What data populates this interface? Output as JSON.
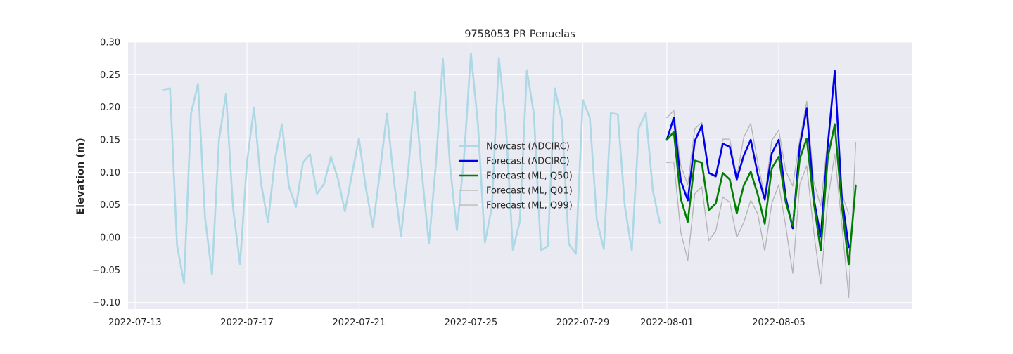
{
  "chart_data": {
    "type": "line",
    "title": "9758053 PR Penuelas",
    "xlabel": "",
    "ylabel": "Elevation (m)",
    "ylim": [
      -0.11,
      0.3
    ],
    "xlim_days": [
      -0.25,
      27.75
    ],
    "x_epoch": "2022-07-13",
    "x_ticks": [
      {
        "day": 0,
        "label": "2022-07-13"
      },
      {
        "day": 4,
        "label": "2022-07-17"
      },
      {
        "day": 8,
        "label": "2022-07-21"
      },
      {
        "day": 12,
        "label": "2022-07-25"
      },
      {
        "day": 16,
        "label": "2022-07-29"
      },
      {
        "day": 19,
        "label": "2022-08-01"
      },
      {
        "day": 23,
        "label": "2022-08-05"
      }
    ],
    "y_ticks": [
      {
        "value": 0.3,
        "label": "0.30"
      },
      {
        "value": 0.25,
        "label": "0.25"
      },
      {
        "value": 0.2,
        "label": "0.20"
      },
      {
        "value": 0.15,
        "label": "0.15"
      },
      {
        "value": 0.1,
        "label": "0.10"
      },
      {
        "value": 0.05,
        "label": "0.05"
      },
      {
        "value": 0.0,
        "label": "0.00"
      },
      {
        "value": -0.05,
        "label": "−0.05"
      },
      {
        "value": -0.1,
        "label": "−0.10"
      }
    ],
    "grid": true,
    "legend_position": "center",
    "series": [
      {
        "name": "Nowcast (ADCIRC)",
        "color": "#add8e6",
        "width": 2.6,
        "x_start_day": 1.0,
        "x_step_day": 0.25,
        "values": [
          0.227,
          0.229,
          -0.012,
          -0.07,
          0.19,
          0.236,
          0.031,
          -0.057,
          0.15,
          0.221,
          0.046,
          -0.041,
          0.116,
          0.199,
          0.084,
          0.023,
          0.12,
          0.174,
          0.078,
          0.047,
          0.115,
          0.128,
          0.067,
          0.082,
          0.124,
          0.09,
          0.04,
          0.097,
          0.152,
          0.075,
          0.016,
          0.101,
          0.19,
          0.088,
          0.002,
          0.098,
          0.223,
          0.098,
          -0.009,
          0.113,
          0.274,
          0.112,
          0.011,
          0.12,
          0.283,
          0.175,
          -0.008,
          0.047,
          0.276,
          0.173,
          -0.019,
          0.025,
          0.257,
          0.19,
          -0.02,
          -0.013,
          0.229,
          0.18,
          -0.01,
          -0.025,
          0.211,
          0.184,
          0.027,
          -0.018,
          0.191,
          0.189,
          0.048,
          -0.02,
          0.168,
          0.191,
          0.072,
          0.022
        ]
      },
      {
        "name": "Forecast (ADCIRC)",
        "color": "#0000ee",
        "width": 2.6,
        "x_start_day": 19.0,
        "x_step_day": 0.25,
        "values": [
          0.15,
          0.184,
          0.087,
          0.057,
          0.148,
          0.172,
          0.099,
          0.094,
          0.144,
          0.139,
          0.089,
          0.126,
          0.15,
          0.097,
          0.058,
          0.129,
          0.15,
          0.061,
          0.014,
          0.14,
          0.198,
          0.06,
          0.001,
          0.14,
          0.256,
          0.063,
          -0.015
        ]
      },
      {
        "name": "Forecast (ML, Q50)",
        "color": "#008000",
        "width": 2.6,
        "x_start_day": 19.0,
        "x_step_day": 0.25,
        "values": [
          0.15,
          0.162,
          0.059,
          0.024,
          0.118,
          0.115,
          0.042,
          0.052,
          0.099,
          0.089,
          0.037,
          0.08,
          0.101,
          0.066,
          0.021,
          0.106,
          0.124,
          0.054,
          0.018,
          0.121,
          0.152,
          0.054,
          -0.02,
          0.122,
          0.174,
          0.05,
          -0.042,
          0.08
        ]
      },
      {
        "name": "Forecast (ML, Q01)",
        "color": "#b3b3b3",
        "width": 1.3,
        "x_start_day": 19.0,
        "x_step_day": 0.25,
        "values": [
          0.115,
          0.116,
          0.008,
          -0.035,
          0.067,
          0.078,
          -0.005,
          0.01,
          0.062,
          0.054,
          0.0,
          0.023,
          0.057,
          0.036,
          -0.021,
          0.052,
          0.081,
          0.017,
          -0.055,
          0.082,
          0.11,
          0.009,
          -0.072,
          0.057,
          0.128,
          0.022,
          -0.092,
          0.146
        ]
      },
      {
        "name": "Forecast (ML, Q99)",
        "color": "#b3b3b3",
        "width": 1.3,
        "x_start_day": 19.0,
        "x_step_day": 0.25,
        "values": [
          0.184,
          0.195,
          0.11,
          0.081,
          0.167,
          0.177,
          0.099,
          0.092,
          0.151,
          0.151,
          0.092,
          0.154,
          0.175,
          0.115,
          0.062,
          0.149,
          0.165,
          0.102,
          0.079,
          0.15,
          0.209,
          0.086,
          0.048,
          0.151,
          0.25,
          0.067,
          0.036
        ]
      }
    ]
  }
}
